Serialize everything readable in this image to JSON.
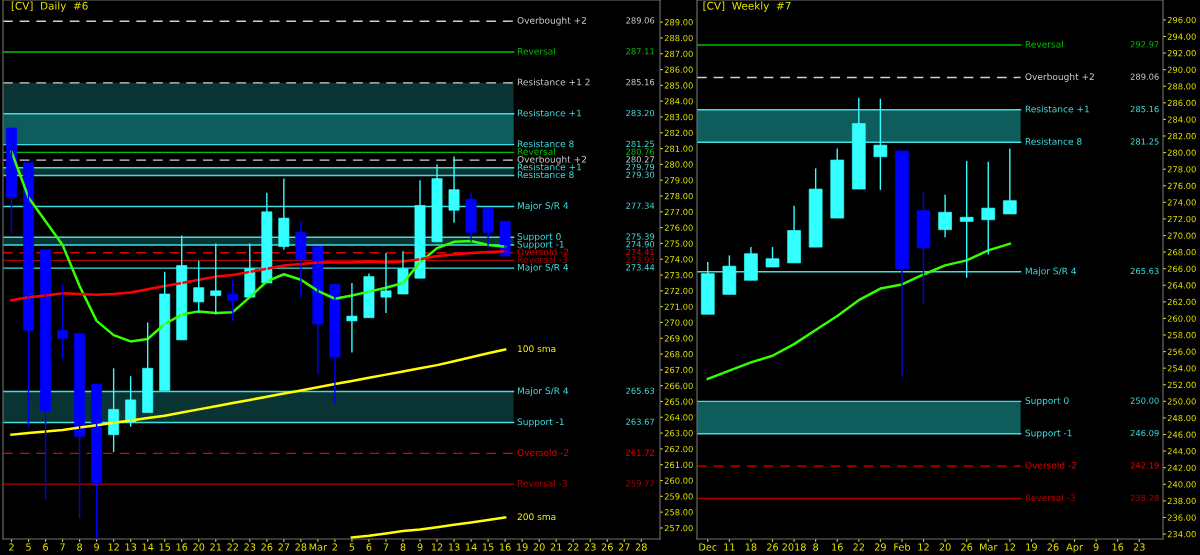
{
  "chart_data": [
    {
      "type": "candlestick",
      "title": "[CV]  Daily  #6",
      "categories": [
        "2",
        "5",
        "6",
        "7",
        "8",
        "9",
        "12",
        "13",
        "14",
        "15",
        "16",
        "20",
        "21",
        "22",
        "23",
        "26",
        "27",
        "28",
        "Mar",
        "2",
        "5",
        "6",
        "7",
        "8",
        "9",
        "12",
        "13",
        "14",
        "15",
        "16",
        "19",
        "20",
        "21",
        "22",
        "23",
        "26",
        "27",
        "28"
      ],
      "ohlc": [
        [
          282.3,
          282.3,
          275.6,
          277.9
        ],
        [
          280.1,
          280.1,
          263.4,
          269.5
        ],
        [
          274.6,
          274.6,
          258.8,
          264.4
        ],
        [
          269.5,
          272.4,
          267.7,
          269.0
        ],
        [
          269.3,
          269.3,
          257.6,
          262.8
        ],
        [
          266.1,
          266.1,
          256.3,
          259.8
        ],
        [
          262.9,
          267.1,
          261.8,
          264.5
        ],
        [
          263.7,
          266.6,
          263.4,
          265.1
        ],
        [
          264.3,
          270.0,
          264.3,
          267.1
        ],
        [
          265.7,
          273.2,
          265.7,
          271.8
        ],
        [
          268.9,
          275.5,
          268.9,
          273.6
        ],
        [
          271.3,
          273.9,
          270.6,
          272.2
        ],
        [
          271.7,
          275.0,
          270.5,
          272.0
        ],
        [
          271.8,
          272.7,
          270.1,
          271.4
        ],
        [
          271.6,
          275.0,
          271.6,
          273.4
        ],
        [
          272.5,
          278.2,
          272.5,
          277.0
        ],
        [
          274.8,
          279.1,
          274.6,
          276.6
        ],
        [
          275.7,
          276.4,
          271.6,
          274.0
        ],
        [
          274.8,
          274.8,
          266.7,
          269.9
        ],
        [
          272.4,
          272.4,
          264.9,
          267.8
        ],
        [
          270.1,
          272.5,
          268.1,
          270.4
        ],
        [
          270.3,
          273.1,
          270.3,
          272.9
        ],
        [
          271.6,
          274.4,
          270.6,
          272.0
        ],
        [
          271.8,
          274.5,
          271.8,
          273.4
        ],
        [
          272.8,
          279.0,
          272.8,
          277.4
        ],
        [
          275.1,
          280.0,
          275.1,
          279.1
        ],
        [
          277.1,
          280.5,
          276.3,
          278.4
        ],
        [
          277.8,
          278.2,
          275.1,
          275.7
        ],
        [
          277.2,
          277.2,
          274.7,
          275.7
        ],
        [
          276.4,
          276.4,
          274.2,
          274.2
        ],
        null,
        null,
        null,
        null,
        null,
        null,
        null,
        null
      ],
      "colors": [
        "#0000ff",
        "#0000ff",
        "#0000ff",
        "#0000ff",
        "#0000ff",
        "#0000ff",
        "#33ffff",
        "#33ffff",
        "#33ffff",
        "#33ffff",
        "#33ffff",
        "#33ffff",
        "#33ffff",
        "#0000ff",
        "#33ffff",
        "#33ffff",
        "#33ffff",
        "#0000ff",
        "#0000ff",
        "#0000ff",
        "#33ffff",
        "#33ffff",
        "#33ffff",
        "#33ffff",
        "#33ffff",
        "#33ffff",
        "#33ffff",
        "#0000ff",
        "#0000ff",
        "#0000ff",
        null,
        null,
        null,
        null,
        null,
        null,
        null,
        null
      ],
      "series": [
        {
          "type": "line",
          "color": "#33ff00",
          "values": [
            280.8,
            277.9,
            276.4,
            274.9,
            272.3,
            270.1,
            269.2,
            268.8,
            268.95,
            269.9,
            270.5,
            270.7,
            270.6,
            270.65,
            271.6,
            272.6,
            273.05,
            272.7,
            272.0,
            271.5,
            271.7,
            271.95,
            272.2,
            272.5,
            273.8,
            274.7,
            275.1,
            275.15,
            274.9,
            274.8,
            null,
            null,
            null,
            null,
            null,
            null,
            null,
            null
          ]
        },
        {
          "type": "line",
          "color": "#ff0000",
          "values": [
            271.4,
            271.6,
            271.7,
            271.85,
            271.8,
            271.75,
            271.8,
            271.9,
            272.1,
            272.3,
            272.5,
            272.7,
            272.9,
            273.0,
            273.2,
            273.4,
            273.6,
            273.7,
            273.8,
            273.8,
            273.8,
            273.85,
            273.8,
            273.85,
            274.0,
            274.2,
            274.3,
            274.4,
            274.45,
            274.5,
            null,
            null,
            null,
            null,
            null,
            null,
            null,
            null
          ]
        },
        {
          "type": "line",
          "name": "100 sma",
          "color": "#ffff00",
          "values": [
            262.9,
            263.0,
            263.1,
            263.2,
            263.35,
            263.5,
            263.65,
            263.8,
            263.95,
            264.1,
            264.3,
            264.5,
            264.7,
            264.9,
            265.1,
            265.3,
            265.5,
            265.7,
            265.9,
            266.1,
            266.3,
            266.5,
            266.7,
            266.9,
            267.1,
            267.3,
            267.55,
            267.8,
            268.05,
            268.29,
            null,
            null,
            null,
            null,
            null,
            null,
            null,
            null
          ]
        },
        {
          "type": "line",
          "name": "200 sma",
          "color": "#ffff00",
          "values": [
            null,
            null,
            null,
            null,
            null,
            null,
            null,
            null,
            null,
            null,
            null,
            null,
            null,
            null,
            null,
            null,
            null,
            null,
            null,
            null,
            256.4,
            256.5,
            256.65,
            256.8,
            256.9,
            257.05,
            257.2,
            257.35,
            257.5,
            257.66,
            null,
            null,
            null,
            null,
            null,
            null,
            null,
            null
          ]
        }
      ],
      "bands": [
        {
          "axis": "y",
          "from": 281.25,
          "to": 285.16,
          "color": "#0a3434"
        },
        {
          "axis": "y",
          "from": 281.25,
          "to": 283.2,
          "color": "#0e5c5c"
        },
        {
          "axis": "y",
          "from": 279.3,
          "to": 279.79,
          "color": "#0a3434"
        },
        {
          "axis": "y",
          "from": 274.9,
          "to": 275.39,
          "color": "#0a3434"
        },
        {
          "axis": "y",
          "from": 263.67,
          "to": 265.63,
          "color": "#0a3434"
        }
      ],
      "ref_lines": [
        {
          "axis": "y",
          "value": 289.06,
          "label": "Overbought +2",
          "color": "#d0d0d0",
          "line_style": "dashed"
        },
        {
          "axis": "y",
          "value": 287.11,
          "label": "Reversal",
          "color": "#00c000",
          "line_style": "solid"
        },
        {
          "axis": "y",
          "value": 285.16,
          "label": "Resistance +1 2",
          "color": "#d0d0d0",
          "line_style": "dashed"
        },
        {
          "axis": "y",
          "value": 283.2,
          "label": "Resistance +1",
          "color": "#40e0e0",
          "line_style": "solid"
        },
        {
          "axis": "y",
          "value": 281.25,
          "label": "Resistance 8",
          "color": "#40e0e0",
          "line_style": "solid"
        },
        {
          "axis": "y",
          "value": 280.76,
          "label": "Reversal",
          "color": "#00c000",
          "line_style": "solid"
        },
        {
          "axis": "y",
          "value": 280.27,
          "label": "Overbought +2",
          "color": "#d0d0d0",
          "line_style": "dashed"
        },
        {
          "axis": "y",
          "value": 279.79,
          "label": "Resistance +1",
          "color": "#40e0e0",
          "line_style": "solid"
        },
        {
          "axis": "y",
          "value": 279.3,
          "label": "Resistance 8",
          "color": "#40e0e0",
          "line_style": "solid"
        },
        {
          "axis": "y",
          "value": 277.34,
          "label": "Major S/R 4",
          "color": "#40e0e0",
          "line_style": "solid"
        },
        {
          "axis": "y",
          "value": 275.39,
          "label": "Support 0",
          "color": "#40e0e0",
          "line_style": "solid"
        },
        {
          "axis": "y",
          "value": 274.9,
          "label": "Support -1",
          "color": "#40e0e0",
          "line_style": "solid"
        },
        {
          "axis": "y",
          "value": 274.41,
          "label": "Oversold -2",
          "color": "#e00000",
          "line_style": "dashed"
        },
        {
          "axis": "y",
          "value": 273.93,
          "label": "Reversal -3",
          "color": "#b00000",
          "line_style": "solid"
        },
        {
          "axis": "y",
          "value": 273.44,
          "label": "Major S/R 4",
          "color": "#40e0e0",
          "line_style": "solid"
        },
        {
          "axis": "y",
          "value": 265.63,
          "label": "Major S/R 4",
          "color": "#40e0e0",
          "line_style": "solid"
        },
        {
          "axis": "y",
          "value": 263.67,
          "label": "Support -1",
          "color": "#40e0e0",
          "line_style": "solid"
        },
        {
          "axis": "y",
          "value": 261.72,
          "label": "Oversold -2",
          "color": "#e00000",
          "line_style": "dashed"
        },
        {
          "axis": "y",
          "value": 259.77,
          "label": "Reversal -3",
          "color": "#b00000",
          "line_style": "solid"
        }
      ],
      "annotations": [
        "289.06",
        "287.11",
        "285.16",
        "283.20",
        "281.25",
        "280.76",
        "280.27",
        "279.79",
        "279.30",
        "277.34",
        "275.39",
        "274.90",
        "274.41",
        "273.93",
        "273.44",
        "265.63",
        "263.67",
        "261.72",
        "259.77"
      ],
      "ylim": [
        256.3,
        290.4
      ],
      "yticks": [
        {
          "value": 257,
          "label": "257.00"
        },
        {
          "value": 258,
          "label": "258.00"
        },
        {
          "value": 259,
          "label": "259.00"
        },
        {
          "value": 260,
          "label": "260.00"
        },
        {
          "value": 261,
          "label": "261.00"
        },
        {
          "value": 262,
          "label": "262.00"
        },
        {
          "value": 263,
          "label": "263.00"
        },
        {
          "value": 264,
          "label": "264.00"
        },
        {
          "value": 265,
          "label": "265.00"
        },
        {
          "value": 266,
          "label": "266.00"
        },
        {
          "value": 267,
          "label": "267.00"
        },
        {
          "value": 268,
          "label": "268.00"
        },
        {
          "value": 269,
          "label": "269.00"
        },
        {
          "value": 270,
          "label": "270.00"
        },
        {
          "value": 271,
          "label": "271.00"
        },
        {
          "value": 272,
          "label": "272.00"
        },
        {
          "value": 273,
          "label": "273.00"
        },
        {
          "value": 274,
          "label": "274.00"
        },
        {
          "value": 275,
          "label": "275.00"
        },
        {
          "value": 276,
          "label": "276.00"
        },
        {
          "value": 277,
          "label": "277.00"
        },
        {
          "value": 278,
          "label": "278.00"
        },
        {
          "value": 279,
          "label": "279.00"
        },
        {
          "value": 280,
          "label": "280.00"
        },
        {
          "value": 281,
          "label": "281.00"
        },
        {
          "value": 282,
          "label": "282.00"
        },
        {
          "value": 283,
          "label": "283.00"
        },
        {
          "value": 284,
          "label": "284.00"
        },
        {
          "value": 285,
          "label": "285.00"
        },
        {
          "value": 286,
          "label": "286.00"
        },
        {
          "value": 287,
          "label": "287.00"
        },
        {
          "value": 288,
          "label": "288.00"
        },
        {
          "value": 289,
          "label": "289.00"
        }
      ]
    },
    {
      "type": "candlestick",
      "title": "[CV]  Weekly  #7",
      "categories": [
        "Dec",
        "11",
        "18",
        "26",
        "2018",
        "8",
        "16",
        "22",
        "29",
        "Feb",
        "12",
        "20",
        "26",
        "Mar",
        "12",
        "19",
        "26",
        "Apr",
        "9",
        "16",
        "23"
      ],
      "ohlc": [
        [
          260.5,
          266.8,
          260.5,
          265.4
        ],
        [
          262.9,
          267.6,
          262.9,
          266.3
        ],
        [
          264.6,
          268.6,
          264.6,
          267.8
        ],
        [
          266.2,
          268.6,
          266.2,
          267.2
        ],
        [
          266.7,
          273.6,
          266.7,
          270.6
        ],
        [
          268.6,
          278.1,
          268.6,
          275.6
        ],
        [
          272.1,
          280.5,
          272.1,
          279.1
        ],
        [
          275.6,
          286.6,
          275.6,
          283.5
        ],
        [
          279.5,
          286.5,
          275.5,
          280.9
        ],
        [
          280.2,
          280.2,
          253.0,
          266.0
        ],
        [
          273.0,
          275.3,
          261.7,
          268.5
        ],
        [
          270.7,
          274.9,
          269.8,
          272.8
        ],
        [
          271.7,
          279.0,
          264.9,
          272.2
        ],
        [
          271.9,
          278.9,
          267.7,
          273.3
        ],
        [
          272.6,
          280.5,
          272.6,
          274.2
        ],
        null,
        null,
        null,
        null,
        null,
        null
      ],
      "colors": [
        "#33ffff",
        "#33ffff",
        "#33ffff",
        "#33ffff",
        "#33ffff",
        "#33ffff",
        "#33ffff",
        "#33ffff",
        "#33ffff",
        "#0000ff",
        "#0000ff",
        "#33ffff",
        "#33ffff",
        "#33ffff",
        "#33ffff",
        null,
        null,
        null,
        null,
        null,
        null
      ],
      "series": [
        {
          "type": "line",
          "color": "#33ff00",
          "values": [
            252.7,
            253.7,
            254.7,
            255.5,
            256.9,
            258.6,
            260.3,
            262.2,
            263.6,
            264.1,
            265.3,
            266.4,
            267.0,
            268.2,
            269.0,
            null,
            null,
            null,
            null,
            null,
            null
          ]
        }
      ],
      "bands": [
        {
          "axis": "y",
          "from": 281.25,
          "to": 285.16,
          "color": "#0e5c5c"
        },
        {
          "axis": "y",
          "from": 246.09,
          "to": 250.0,
          "color": "#0e5c5c"
        }
      ],
      "ref_lines": [
        {
          "axis": "y",
          "value": 292.97,
          "label": "Reversal",
          "color": "#00c000",
          "line_style": "solid"
        },
        {
          "axis": "y",
          "value": 289.06,
          "label": "Overbought +2",
          "color": "#d0d0d0",
          "line_style": "dashed"
        },
        {
          "axis": "y",
          "value": 285.16,
          "label": "Resistance +1",
          "color": "#40e0e0",
          "line_style": "solid"
        },
        {
          "axis": "y",
          "value": 281.25,
          "label": "Resistance 8",
          "color": "#40e0e0",
          "line_style": "solid"
        },
        {
          "axis": "y",
          "value": 265.63,
          "label": "Major S/R 4",
          "color": "#40e0e0",
          "line_style": "solid"
        },
        {
          "axis": "y",
          "value": 250.0,
          "label": "Support 0",
          "color": "#40e0e0",
          "line_style": "solid"
        },
        {
          "axis": "y",
          "value": 246.09,
          "label": "Support -1",
          "color": "#40e0e0",
          "line_style": "solid"
        },
        {
          "axis": "y",
          "value": 242.19,
          "label": "Oversold -2",
          "color": "#e00000",
          "line_style": "dashed"
        },
        {
          "axis": "y",
          "value": 238.28,
          "label": "Reversal -3",
          "color": "#b00000",
          "line_style": "solid"
        }
      ],
      "annotations": [
        "292.97",
        "289.06",
        "285.16",
        "281.25",
        "265.63",
        "250.00",
        "246.09",
        "242.19",
        "238.28"
      ],
      "ylim": [
        233.4,
        298.4
      ],
      "yticks": [
        {
          "value": 234,
          "label": "234.00"
        },
        {
          "value": 236,
          "label": "236.00"
        },
        {
          "value": 238,
          "label": "238.00"
        },
        {
          "value": 240,
          "label": "240.00"
        },
        {
          "value": 242,
          "label": "242.00"
        },
        {
          "value": 244,
          "label": "244.00"
        },
        {
          "value": 246,
          "label": "246.00"
        },
        {
          "value": 248,
          "label": "248.00"
        },
        {
          "value": 250,
          "label": "250.00"
        },
        {
          "value": 252,
          "label": "252.00"
        },
        {
          "value": 254,
          "label": "254.00"
        },
        {
          "value": 256,
          "label": "256.00"
        },
        {
          "value": 258,
          "label": "258.00"
        },
        {
          "value": 260,
          "label": "260.00"
        },
        {
          "value": 262,
          "label": "262.00"
        },
        {
          "value": 264,
          "label": "264.00"
        },
        {
          "value": 266,
          "label": "266.00"
        },
        {
          "value": 268,
          "label": "268.00"
        },
        {
          "value": 270,
          "label": "270.00"
        },
        {
          "value": 272,
          "label": "272.00"
        },
        {
          "value": 274,
          "label": "274.00"
        },
        {
          "value": 276,
          "label": "276.00"
        },
        {
          "value": 278,
          "label": "278.00"
        },
        {
          "value": 280,
          "label": "280.00"
        },
        {
          "value": 282,
          "label": "282.00"
        },
        {
          "value": 284,
          "label": "284.00"
        },
        {
          "value": 286,
          "label": "286.00"
        },
        {
          "value": 288,
          "label": "288.00"
        },
        {
          "value": 290,
          "label": "290.00"
        },
        {
          "value": 292,
          "label": "292.00"
        },
        {
          "value": 294,
          "label": "294.00"
        },
        {
          "value": 296,
          "label": "296.00"
        }
      ]
    }
  ]
}
